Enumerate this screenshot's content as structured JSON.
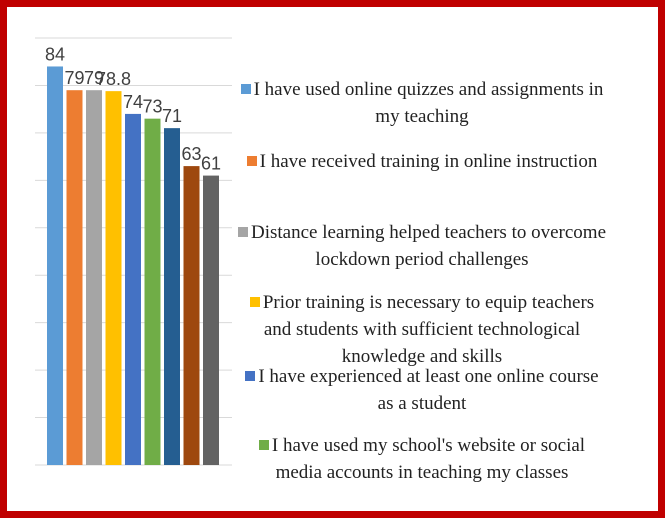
{
  "chart_data": {
    "type": "bar",
    "series": [
      {
        "name": "I have used online quizzes and assignments in my teaching",
        "color": "#5b9bd5",
        "values": [
          84
        ]
      },
      {
        "name": "I have received training in online instruction",
        "color": "#ed7d31",
        "values": [
          79
        ]
      },
      {
        "name": "Distance learning helped teachers to overcome lockdown period challenges",
        "color": "#a5a5a5",
        "values": [
          79
        ]
      },
      {
        "name": "Prior training is necessary to equip teachers and students with sufficient technological knowledge and skills",
        "color": "#ffc000",
        "values": [
          78.8
        ]
      },
      {
        "name": "I have experienced at least one online course as a student",
        "color": "#4472c4",
        "values": [
          74
        ]
      },
      {
        "name": "I have used my school's website or social media accounts in teaching my classes",
        "color": "#70ad47",
        "values": [
          73
        ]
      },
      {
        "color": "#255e91",
        "values": [
          71
        ]
      },
      {
        "color": "#9e480e",
        "values": [
          63
        ]
      },
      {
        "color": "#636363",
        "values": [
          61
        ]
      }
    ],
    "ylim": [
      0,
      90
    ],
    "yticks": [
      0,
      10,
      20,
      30,
      40,
      50,
      60,
      70,
      80,
      90
    ],
    "grid": true,
    "legend": "right"
  }
}
